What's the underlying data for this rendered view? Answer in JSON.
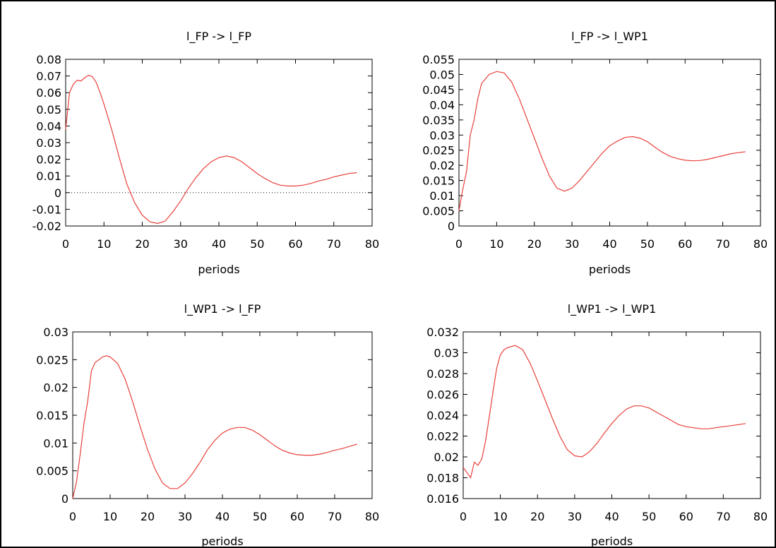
{
  "chart_data": [
    {
      "type": "line",
      "title": "l_FP -> l_FP",
      "xlabel": "periods",
      "ylabel": "",
      "xlim": [
        0,
        80
      ],
      "ylim": [
        -0.02,
        0.08
      ],
      "xticks": [
        "0",
        "10",
        "20",
        "30",
        "40",
        "50",
        "60",
        "70",
        "80"
      ],
      "yticks": [
        "-0.02",
        "-0.01",
        "0",
        "0.01",
        "0.02",
        "0.03",
        "0.04",
        "0.05",
        "0.06",
        "0.07",
        "0.08"
      ],
      "zero_line": true,
      "color": "#e8403a",
      "x": [
        0,
        1,
        2,
        3,
        4,
        5,
        6,
        7,
        8,
        9,
        10,
        12,
        14,
        16,
        18,
        20,
        22,
        24,
        26,
        28,
        30,
        32,
        34,
        36,
        38,
        40,
        42,
        44,
        46,
        48,
        50,
        52,
        54,
        56,
        58,
        60,
        62,
        64,
        66,
        68,
        70,
        72,
        74,
        76
      ],
      "y": [
        0.038,
        0.06,
        0.065,
        0.0675,
        0.067,
        0.069,
        0.0705,
        0.0695,
        0.066,
        0.06,
        0.053,
        0.038,
        0.021,
        0.005,
        -0.006,
        -0.0135,
        -0.0175,
        -0.0185,
        -0.017,
        -0.0115,
        -0.005,
        0.0025,
        0.009,
        0.0145,
        0.0185,
        0.021,
        0.022,
        0.021,
        0.0185,
        0.015,
        0.0115,
        0.0085,
        0.006,
        0.0045,
        0.004,
        0.004,
        0.0045,
        0.0055,
        0.007,
        0.008,
        0.0095,
        0.0105,
        0.0115,
        0.012
      ]
    },
    {
      "type": "line",
      "title": "l_FP -> l_WP1",
      "xlabel": "periods",
      "ylabel": "",
      "xlim": [
        0,
        80
      ],
      "ylim": [
        0,
        0.055
      ],
      "xticks": [
        "0",
        "10",
        "20",
        "30",
        "40",
        "50",
        "60",
        "70",
        "80"
      ],
      "yticks": [
        "0",
        "0.005",
        "0.01",
        "0.015",
        "0.02",
        "0.025",
        "0.03",
        "0.035",
        "0.04",
        "0.045",
        "0.05",
        "0.055"
      ],
      "zero_line": false,
      "color": "#e8403a",
      "x": [
        0,
        1,
        2,
        3,
        4,
        5,
        6,
        8,
        10,
        12,
        14,
        16,
        18,
        20,
        22,
        24,
        26,
        28,
        30,
        32,
        34,
        36,
        38,
        40,
        42,
        44,
        46,
        48,
        50,
        52,
        54,
        56,
        58,
        60,
        62,
        64,
        66,
        68,
        70,
        72,
        74,
        76
      ],
      "y": [
        0.005,
        0.012,
        0.018,
        0.03,
        0.035,
        0.042,
        0.047,
        0.05,
        0.051,
        0.0505,
        0.0475,
        0.042,
        0.0355,
        0.029,
        0.0225,
        0.0165,
        0.0125,
        0.0115,
        0.0125,
        0.015,
        0.018,
        0.021,
        0.024,
        0.0265,
        0.028,
        0.0292,
        0.0295,
        0.029,
        0.0278,
        0.026,
        0.0243,
        0.023,
        0.0222,
        0.0217,
        0.0215,
        0.0216,
        0.022,
        0.0226,
        0.0232,
        0.0238,
        0.0242,
        0.0245
      ]
    },
    {
      "type": "line",
      "title": "l_WP1 -> l_FP",
      "xlabel": "periods",
      "ylabel": "",
      "xlim": [
        0,
        80
      ],
      "ylim": [
        0,
        0.03
      ],
      "xticks": [
        "0",
        "10",
        "20",
        "30",
        "40",
        "50",
        "60",
        "70",
        "80"
      ],
      "yticks": [
        "0",
        "0.005",
        "0.01",
        "0.015",
        "0.02",
        "0.025",
        "0.03"
      ],
      "zero_line": false,
      "color": "#e8403a",
      "x": [
        0,
        1,
        2,
        3,
        4,
        5,
        6,
        7,
        8,
        9,
        10,
        12,
        14,
        16,
        18,
        20,
        22,
        24,
        26,
        28,
        30,
        32,
        34,
        36,
        38,
        40,
        42,
        44,
        46,
        48,
        50,
        52,
        54,
        56,
        58,
        60,
        62,
        64,
        66,
        68,
        70,
        72,
        74,
        76
      ],
      "y": [
        0.0,
        0.003,
        0.008,
        0.0135,
        0.0175,
        0.023,
        0.0245,
        0.025,
        0.0255,
        0.0257,
        0.0255,
        0.0243,
        0.0215,
        0.0175,
        0.013,
        0.0088,
        0.0053,
        0.0028,
        0.0018,
        0.0018,
        0.0028,
        0.0045,
        0.0065,
        0.0088,
        0.0105,
        0.0118,
        0.0125,
        0.0128,
        0.0128,
        0.0123,
        0.0115,
        0.0105,
        0.0095,
        0.0087,
        0.0082,
        0.0079,
        0.0078,
        0.0078,
        0.008,
        0.0083,
        0.0087,
        0.009,
        0.0094,
        0.0098
      ]
    },
    {
      "type": "line",
      "title": "l_WP1 -> l_WP1",
      "xlabel": "periods",
      "ylabel": "",
      "xlim": [
        0,
        80
      ],
      "ylim": [
        0.016,
        0.032
      ],
      "xticks": [
        "0",
        "10",
        "20",
        "30",
        "40",
        "50",
        "60",
        "70",
        "80"
      ],
      "yticks": [
        "0.016",
        "0.018",
        "0.02",
        "0.022",
        "0.024",
        "0.026",
        "0.028",
        "0.03",
        "0.032"
      ],
      "zero_line": false,
      "color": "#e8403a",
      "x": [
        0,
        2,
        3,
        4,
        5,
        6,
        7,
        8,
        9,
        10,
        11,
        12,
        14,
        16,
        18,
        20,
        22,
        24,
        26,
        28,
        30,
        32,
        34,
        36,
        38,
        40,
        42,
        44,
        46,
        48,
        50,
        52,
        54,
        56,
        58,
        60,
        62,
        64,
        66,
        68,
        70,
        72,
        74,
        76
      ],
      "y": [
        0.019,
        0.018,
        0.0195,
        0.0192,
        0.0198,
        0.0215,
        0.0238,
        0.0262,
        0.0285,
        0.0298,
        0.0303,
        0.0305,
        0.0307,
        0.0303,
        0.029,
        0.0273,
        0.0255,
        0.0237,
        0.022,
        0.0207,
        0.0201,
        0.02,
        0.0205,
        0.0213,
        0.0223,
        0.0232,
        0.024,
        0.0246,
        0.0249,
        0.0249,
        0.0247,
        0.0243,
        0.0239,
        0.0235,
        0.0231,
        0.0229,
        0.0228,
        0.0227,
        0.0227,
        0.0228,
        0.0229,
        0.023,
        0.0231,
        0.0232
      ]
    }
  ]
}
